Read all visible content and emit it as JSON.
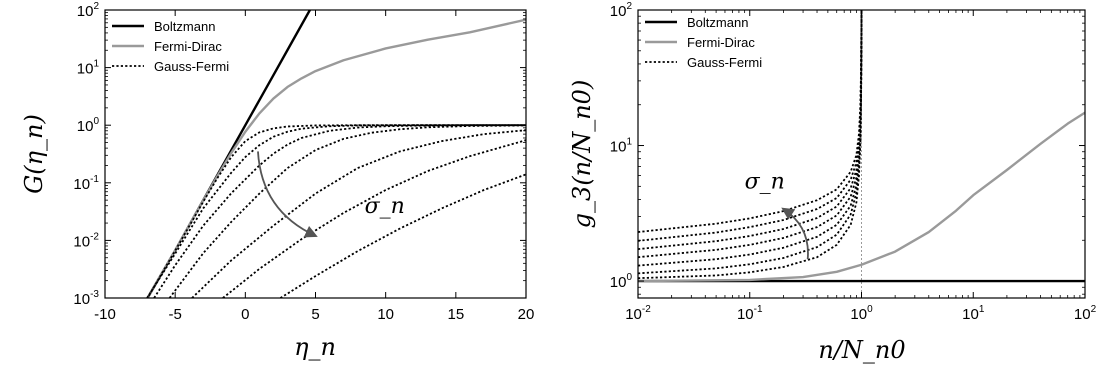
{
  "colors": {
    "boltzmann": "#000000",
    "fermi_dirac": "#9a9a9a",
    "gauss_fermi": "#000000",
    "annotation": "#555555"
  },
  "chart_data": [
    {
      "type": "line",
      "title": "",
      "xlabel": "η_n",
      "ylabel": "G(η_n)",
      "xlim": [
        -10,
        20
      ],
      "ylim": [
        0.001,
        100
      ],
      "yscale": "log",
      "grid": false,
      "legend": "top-left",
      "xticks": [
        {
          "value": -10,
          "label": "-10"
        },
        {
          "value": -5,
          "label": "-5"
        },
        {
          "value": 0,
          "label": "0"
        },
        {
          "value": 5,
          "label": "5"
        },
        {
          "value": 10,
          "label": "10"
        },
        {
          "value": 15,
          "label": "15"
        },
        {
          "value": 20,
          "label": "20"
        }
      ],
      "yticks": [
        {
          "value": 0.001,
          "base": "10",
          "exp": "-3"
        },
        {
          "value": 0.01,
          "base": "10",
          "exp": "-2"
        },
        {
          "value": 0.1,
          "base": "10",
          "exp": "-1"
        },
        {
          "value": 1,
          "base": "10",
          "exp": "0"
        },
        {
          "value": 10,
          "base": "10",
          "exp": "1"
        },
        {
          "value": 100,
          "base": "10",
          "exp": "2"
        }
      ],
      "annotation": {
        "label": "σ_n",
        "arrow_from": [
          0.9,
          0.35
        ],
        "arrow_to": [
          5,
          0.012
        ],
        "label_at": [
          8.5,
          0.03
        ]
      },
      "series": [
        {
          "name": "Boltzmann",
          "style": "solid",
          "color": "#000000",
          "x": [
            -7.2,
            -5,
            -3,
            -1,
            0,
            1,
            2,
            3,
            4.6
          ],
          "y": [
            0.0008,
            0.0067,
            0.0498,
            0.368,
            1.0,
            2.72,
            7.39,
            20.1,
            100
          ]
        },
        {
          "name": "Fermi-Dirac",
          "style": "solid",
          "color": "#9a9a9a",
          "x": [
            -7.2,
            -5,
            -3,
            -2,
            -1,
            0,
            1,
            2,
            3,
            4,
            5,
            7,
            10,
            13,
            16,
            20
          ],
          "y": [
            0.0008,
            0.0067,
            0.049,
            0.13,
            0.33,
            0.77,
            1.6,
            2.9,
            4.6,
            6.5,
            8.7,
            13.4,
            21.5,
            30.5,
            41,
            68
          ]
        },
        {
          "name": "Gauss-Fermi",
          "style": "dotted",
          "color": "#000000",
          "x": [
            -7.2,
            -5,
            -3,
            -2,
            -1,
            0,
            1,
            2,
            3,
            5,
            8,
            12,
            16,
            20
          ],
          "y": [
            0.0008,
            0.0066,
            0.047,
            0.12,
            0.28,
            0.53,
            0.75,
            0.88,
            0.95,
            0.99,
            1.0,
            1.0,
            1.0,
            1.0
          ]
        },
        {
          "name": "Gauss-Fermi",
          "style": "dotted",
          "color": "#000000",
          "x": [
            -7,
            -5,
            -3,
            -1,
            0,
            1,
            2,
            3,
            4,
            6,
            8,
            12,
            16,
            20
          ],
          "y": [
            0.001,
            0.0059,
            0.036,
            0.15,
            0.28,
            0.45,
            0.63,
            0.77,
            0.87,
            0.96,
            0.99,
            1.0,
            1.0,
            1.0
          ]
        },
        {
          "name": "Gauss-Fermi",
          "style": "dotted",
          "color": "#000000",
          "x": [
            -6.5,
            -5,
            -3,
            -1,
            1,
            2,
            3,
            4,
            6,
            8,
            10,
            12,
            16,
            20
          ],
          "y": [
            0.001,
            0.0037,
            0.018,
            0.066,
            0.2,
            0.32,
            0.46,
            0.6,
            0.8,
            0.91,
            0.96,
            0.98,
            1.0,
            1.0
          ]
        },
        {
          "name": "Gauss-Fermi",
          "style": "dotted",
          "color": "#000000",
          "x": [
            -5.4,
            -3,
            -1,
            1,
            3,
            5,
            7,
            9,
            11,
            13,
            16,
            20
          ],
          "y": [
            0.001,
            0.006,
            0.021,
            0.065,
            0.18,
            0.37,
            0.58,
            0.74,
            0.85,
            0.92,
            0.97,
            0.99
          ]
        },
        {
          "name": "Gauss-Fermi",
          "style": "dotted",
          "color": "#000000",
          "x": [
            -3.8,
            -1,
            2,
            5,
            8,
            11,
            14,
            17,
            20
          ],
          "y": [
            0.001,
            0.0045,
            0.018,
            0.065,
            0.18,
            0.35,
            0.53,
            0.7,
            0.82
          ]
        },
        {
          "name": "Gauss-Fermi",
          "style": "dotted",
          "color": "#000000",
          "x": [
            -1.6,
            1,
            4,
            7,
            10,
            13,
            16,
            20
          ],
          "y": [
            0.001,
            0.0032,
            0.0105,
            0.03,
            0.075,
            0.16,
            0.29,
            0.55
          ]
        },
        {
          "name": "Gauss-Fermi",
          "style": "dotted",
          "color": "#000000",
          "x": [
            2.5,
            5,
            8,
            11,
            14,
            17,
            20
          ],
          "y": [
            0.001,
            0.0024,
            0.0065,
            0.016,
            0.036,
            0.075,
            0.14
          ]
        }
      ]
    },
    {
      "type": "line",
      "title": "",
      "xlabel": "n/N_n0",
      "ylabel": "g_3(n/N_n0)",
      "xlim": [
        0.01,
        100
      ],
      "ylim": [
        0.75,
        100
      ],
      "xscale": "log",
      "yscale": "log",
      "grid": false,
      "legend": "top-left",
      "vline": {
        "x": 1,
        "style": "dotted",
        "color": "#9a9a9a"
      },
      "xticks": [
        {
          "value": 0.01,
          "base": "10",
          "exp": "-2"
        },
        {
          "value": 0.1,
          "base": "10",
          "exp": "-1"
        },
        {
          "value": 1,
          "base": "10",
          "exp": "0"
        },
        {
          "value": 10,
          "base": "10",
          "exp": "1"
        },
        {
          "value": 100,
          "base": "10",
          "exp": "2"
        }
      ],
      "yticks": [
        {
          "value": 1,
          "base": "10",
          "exp": "0"
        },
        {
          "value": 10,
          "base": "10",
          "exp": "1"
        },
        {
          "value": 100,
          "base": "10",
          "exp": "2"
        }
      ],
      "annotation": {
        "label": "σ_n",
        "arrow_from": [
          0.33,
          1.45
        ],
        "arrow_to": [
          0.2,
          3.4
        ],
        "label_at": [
          0.09,
          4.8
        ]
      },
      "series": [
        {
          "name": "Boltzmann",
          "style": "solid",
          "color": "#000000",
          "x": [
            0.01,
            100
          ],
          "y": [
            1.0,
            1.0
          ]
        },
        {
          "name": "Fermi-Dirac",
          "style": "solid",
          "color": "#9a9a9a",
          "x": [
            0.01,
            0.1,
            0.3,
            0.6,
            1,
            2,
            4,
            7,
            10,
            20,
            40,
            70,
            100
          ],
          "y": [
            1.0,
            1.02,
            1.07,
            1.17,
            1.32,
            1.65,
            2.3,
            3.3,
            4.3,
            6.6,
            10.3,
            14.5,
            17.5
          ]
        },
        {
          "name": "Gauss-Fermi",
          "style": "dotted",
          "color": "#000000",
          "x": [
            0.01,
            0.05,
            0.1,
            0.2,
            0.4,
            0.6,
            0.8,
            0.9,
            0.95,
            0.98,
            0.995,
            1.0
          ],
          "y": [
            1.05,
            1.1,
            1.16,
            1.27,
            1.5,
            1.85,
            2.6,
            3.8,
            6.0,
            11,
            30,
            100
          ]
        },
        {
          "name": "Gauss-Fermi",
          "style": "dotted",
          "color": "#000000",
          "x": [
            0.01,
            0.05,
            0.1,
            0.2,
            0.4,
            0.6,
            0.8,
            0.9,
            0.95,
            0.98,
            0.995,
            1.0
          ],
          "y": [
            1.14,
            1.24,
            1.33,
            1.48,
            1.78,
            2.2,
            3.1,
            4.5,
            6.9,
            12.5,
            32,
            100
          ]
        },
        {
          "name": "Gauss-Fermi",
          "style": "dotted",
          "color": "#000000",
          "x": [
            0.01,
            0.05,
            0.1,
            0.2,
            0.4,
            0.6,
            0.8,
            0.9,
            0.95,
            0.98,
            0.995,
            1.0
          ],
          "y": [
            1.3,
            1.45,
            1.57,
            1.76,
            2.12,
            2.6,
            3.6,
            5.1,
            7.8,
            14,
            35,
            100
          ]
        },
        {
          "name": "Gauss-Fermi",
          "style": "dotted",
          "color": "#000000",
          "x": [
            0.01,
            0.05,
            0.1,
            0.2,
            0.4,
            0.6,
            0.8,
            0.9,
            0.95,
            0.98,
            0.995,
            1.0
          ],
          "y": [
            1.5,
            1.7,
            1.85,
            2.08,
            2.5,
            3.05,
            4.2,
            5.8,
            8.8,
            15.5,
            38,
            100
          ]
        },
        {
          "name": "Gauss-Fermi",
          "style": "dotted",
          "color": "#000000",
          "x": [
            0.01,
            0.05,
            0.1,
            0.2,
            0.4,
            0.6,
            0.8,
            0.9,
            0.95,
            0.98,
            0.995,
            1.0
          ],
          "y": [
            1.72,
            1.97,
            2.15,
            2.42,
            2.92,
            3.55,
            4.85,
            6.6,
            9.9,
            17,
            41,
            100
          ]
        },
        {
          "name": "Gauss-Fermi",
          "style": "dotted",
          "color": "#000000",
          "x": [
            0.01,
            0.05,
            0.1,
            0.2,
            0.4,
            0.6,
            0.8,
            0.9,
            0.95,
            0.98,
            0.995,
            1.0
          ],
          "y": [
            1.98,
            2.28,
            2.5,
            2.82,
            3.4,
            4.1,
            5.6,
            7.5,
            11,
            19,
            44,
            100
          ]
        },
        {
          "name": "Gauss-Fermi",
          "style": "dotted",
          "color": "#000000",
          "x": [
            0.01,
            0.05,
            0.1,
            0.2,
            0.4,
            0.6,
            0.8,
            0.9,
            0.95,
            0.98,
            0.995,
            1.0
          ],
          "y": [
            2.3,
            2.65,
            2.9,
            3.28,
            3.95,
            4.75,
            6.4,
            8.5,
            12.3,
            21,
            47,
            100
          ]
        }
      ]
    }
  ]
}
